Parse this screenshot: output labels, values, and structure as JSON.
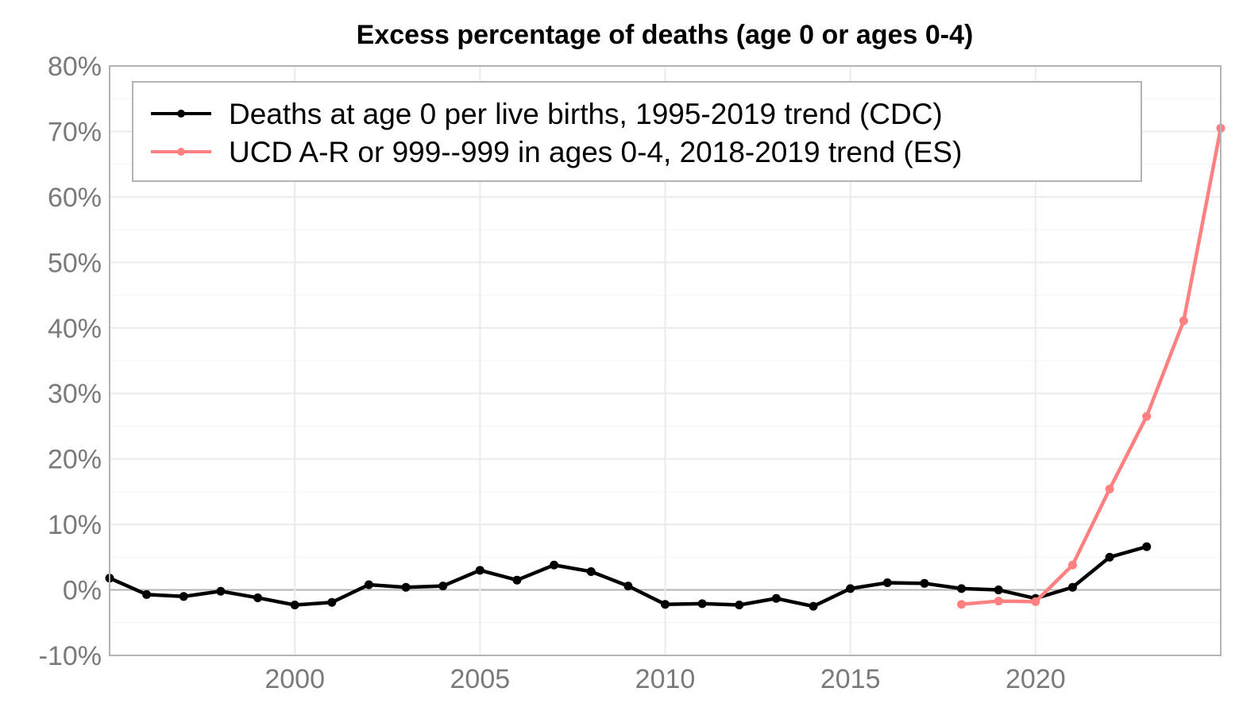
{
  "chart_data": {
    "type": "line",
    "title": "Excess percentage of deaths (age 0 or ages 0-4)",
    "xlabel": "",
    "ylabel": "",
    "xlim": [
      1995,
      2025
    ],
    "ylim": [
      -10,
      80
    ],
    "x_ticks": [
      2000,
      2005,
      2010,
      2015,
      2020
    ],
    "x_tick_labels": [
      "2000",
      "2005",
      "2010",
      "2015",
      "2020"
    ],
    "y_ticks": [
      -10,
      0,
      10,
      20,
      30,
      40,
      50,
      60,
      70,
      80
    ],
    "y_tick_labels": [
      "-10%",
      "0%",
      "10%",
      "20%",
      "30%",
      "40%",
      "50%",
      "60%",
      "70%",
      "80%"
    ],
    "grid": true,
    "legend_position": "top-left",
    "series": [
      {
        "name": "Deaths at age 0 per live births, 1995-2019 trend (CDC)",
        "color": "#000000",
        "x": [
          1995,
          1996,
          1997,
          1998,
          1999,
          2000,
          2001,
          2002,
          2003,
          2004,
          2005,
          2006,
          2007,
          2008,
          2009,
          2010,
          2011,
          2012,
          2013,
          2014,
          2015,
          2016,
          2017,
          2018,
          2019,
          2020,
          2021,
          2022,
          2023
        ],
        "y": [
          1.8,
          -0.7,
          -1.0,
          -0.2,
          -1.2,
          -2.3,
          -1.9,
          0.8,
          0.4,
          0.6,
          3.0,
          1.5,
          3.8,
          2.8,
          0.6,
          -2.2,
          -2.1,
          -2.3,
          -1.3,
          -2.5,
          0.2,
          1.1,
          1.0,
          0.2,
          0.0,
          -1.3,
          0.4,
          5.0,
          6.6
        ]
      },
      {
        "name": "UCD A-R or 999--999 in ages 0-4, 2018-2019 trend (ES)",
        "color": "#ff8080",
        "x": [
          2018,
          2019,
          2020,
          2021,
          2022,
          2023,
          2024,
          2025
        ],
        "y": [
          -2.2,
          -1.7,
          -1.8,
          3.8,
          15.4,
          26.5,
          41.1,
          70.5
        ]
      }
    ]
  }
}
